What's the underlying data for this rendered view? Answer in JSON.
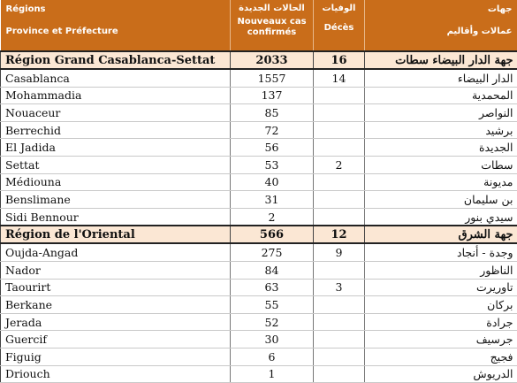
{
  "header": {
    "col_name_fr_1": "Régions",
    "col_name_fr_2": "Province et Préfecture",
    "col_cases_ar": "الحالات الجديدة",
    "col_cases_fr": "Nouveaux cas confirmés",
    "col_deaths_ar": "الوفيات",
    "col_deaths_fr": "Décès",
    "col_name_ar_1": "جهات",
    "col_name_ar_2": "عمالات وأقاليم"
  },
  "regions": [
    {
      "name_fr": "Région Grand Casablanca-Settat",
      "cases": "2033",
      "deaths": "16",
      "name_ar": "جهة الدار البيضاء سطات",
      "rows": [
        {
          "name_fr": "Casablanca",
          "cases": "1557",
          "deaths": "14",
          "name_ar": "الدار البيضاء"
        },
        {
          "name_fr": "Mohammadia",
          "cases": "137",
          "deaths": "",
          "name_ar": "المحمدية"
        },
        {
          "name_fr": "Nouaceur",
          "cases": "85",
          "deaths": "",
          "name_ar": "النواصر"
        },
        {
          "name_fr": "Berrechid",
          "cases": "72",
          "deaths": "",
          "name_ar": "برشيد"
        },
        {
          "name_fr": "El Jadida",
          "cases": "56",
          "deaths": "",
          "name_ar": "الجديدة"
        },
        {
          "name_fr": "Settat",
          "cases": "53",
          "deaths": "2",
          "name_ar": "سطات"
        },
        {
          "name_fr": "Médiouna",
          "cases": "40",
          "deaths": "",
          "name_ar": "مديونة"
        },
        {
          "name_fr": "Benslimane",
          "cases": "31",
          "deaths": "",
          "name_ar": "بن سليمان"
        },
        {
          "name_fr": "Sidi Bennour",
          "cases": "2",
          "deaths": "",
          "name_ar": "سيدي بنور"
        }
      ]
    },
    {
      "name_fr": "Région de l'Oriental",
      "cases": "566",
      "deaths": "12",
      "name_ar": "جهة الشرق",
      "rows": [
        {
          "name_fr": "Oujda-Angad",
          "cases": "275",
          "deaths": "9",
          "name_ar": "وجدة - أنجاد"
        },
        {
          "name_fr": "Nador",
          "cases": "84",
          "deaths": "",
          "name_ar": "الناظور"
        },
        {
          "name_fr": "Taourirt",
          "cases": "63",
          "deaths": "3",
          "name_ar": "تاوريرت"
        },
        {
          "name_fr": "Berkane",
          "cases": "55",
          "deaths": "",
          "name_ar": "بركان"
        },
        {
          "name_fr": "Jerada",
          "cases": "52",
          "deaths": "",
          "name_ar": "جرادة"
        },
        {
          "name_fr": "Guercif",
          "cases": "30",
          "deaths": "",
          "name_ar": "جرسيف"
        },
        {
          "name_fr": "Figuig",
          "cases": "6",
          "deaths": "",
          "name_ar": "فجيج"
        },
        {
          "name_fr": "Driouch",
          "cases": "1",
          "deaths": "",
          "name_ar": "الدريوش"
        }
      ]
    }
  ]
}
